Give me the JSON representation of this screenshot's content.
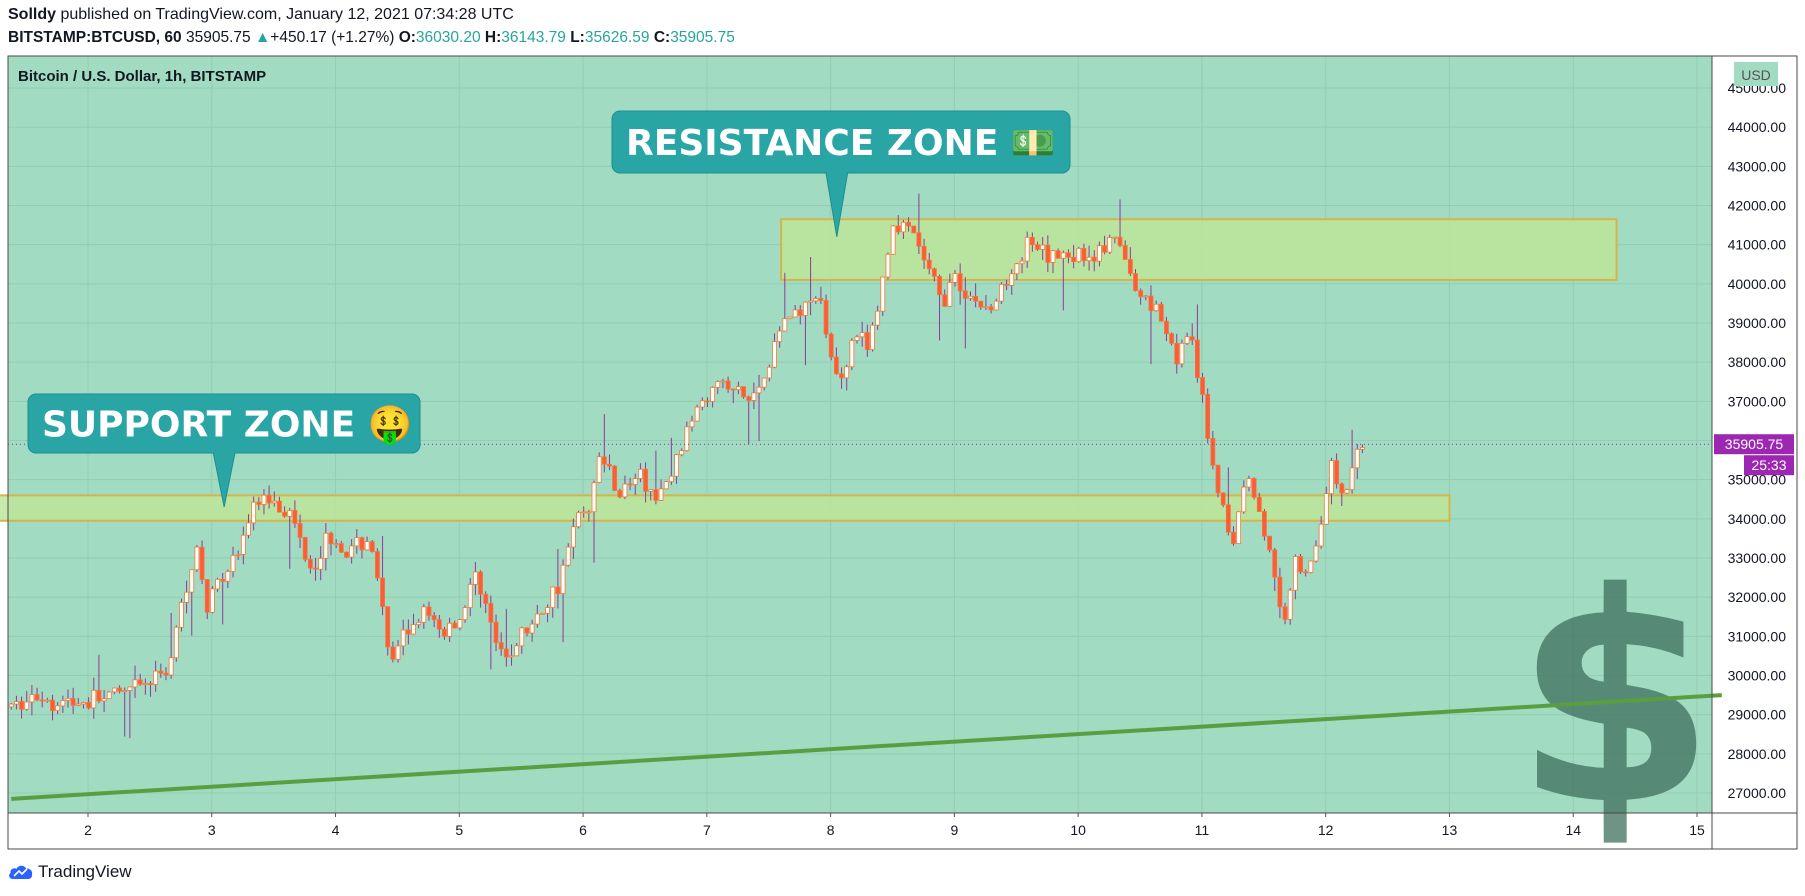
{
  "header": {
    "author": "Solldy",
    "published_text": "published on TradingView.com, January 12, 2021 07:34:28 UTC",
    "symbol": "BITSTAMP:BTCUSD, 60",
    "last": "35905.75",
    "change_arrow": "▲",
    "change": "+450.17 (+1.27%)",
    "o_label": "O:",
    "o_value": "36030.20",
    "h_label": "H:",
    "h_value": "36143.79",
    "l_label": "L:",
    "l_value": "35626.59",
    "c_label": "C:",
    "c_value": "35905.75"
  },
  "chart_data": {
    "type": "candlestick",
    "title": "Bitcoin / U.S. Dollar, 1h, BITSTAMP",
    "currency_label": "USD",
    "x_ticks": [
      "2",
      "3",
      "4",
      "5",
      "6",
      "7",
      "8",
      "9",
      "10",
      "11",
      "12",
      "13",
      "14",
      "15"
    ],
    "y_ticks": [
      27000,
      28000,
      29000,
      30000,
      31000,
      32000,
      33000,
      34000,
      35000,
      36000,
      37000,
      38000,
      39000,
      40000,
      41000,
      42000,
      43000,
      44000,
      45000
    ],
    "y_range": [
      26500,
      45400
    ],
    "x_range_days": [
      1.37,
      15.2
    ],
    "last_price_label": "35905.75",
    "countdown_label": "25:33",
    "price_path": [
      [
        1.38,
        29200
      ],
      [
        1.6,
        29450
      ],
      [
        1.9,
        29300
      ],
      [
        2.2,
        29450
      ],
      [
        2.5,
        29800
      ],
      [
        2.65,
        30200
      ],
      [
        2.8,
        32500
      ],
      [
        2.9,
        33200
      ],
      [
        2.95,
        31500
      ],
      [
        3.05,
        32600
      ],
      [
        3.2,
        33000
      ],
      [
        3.35,
        34400
      ],
      [
        3.5,
        34600
      ],
      [
        3.65,
        34000
      ],
      [
        3.8,
        32800
      ],
      [
        3.95,
        33600
      ],
      [
        4.1,
        33100
      ],
      [
        4.25,
        33500
      ],
      [
        4.3,
        33200
      ],
      [
        4.45,
        30200
      ],
      [
        4.55,
        31000
      ],
      [
        4.7,
        31600
      ],
      [
        4.85,
        31100
      ],
      [
        5.0,
        31400
      ],
      [
        5.15,
        32700
      ],
      [
        5.25,
        31300
      ],
      [
        5.35,
        30300
      ],
      [
        5.5,
        31000
      ],
      [
        5.65,
        31500
      ],
      [
        5.8,
        32400
      ],
      [
        5.95,
        34000
      ],
      [
        6.05,
        34400
      ],
      [
        6.15,
        35700
      ],
      [
        6.3,
        34600
      ],
      [
        6.45,
        35200
      ],
      [
        6.6,
        34400
      ],
      [
        6.75,
        35400
      ],
      [
        6.9,
        36800
      ],
      [
        7.05,
        37500
      ],
      [
        7.2,
        37300
      ],
      [
        7.35,
        37000
      ],
      [
        7.5,
        37900
      ],
      [
        7.65,
        39400
      ],
      [
        7.75,
        39200
      ],
      [
        7.85,
        39800
      ],
      [
        7.95,
        39100
      ],
      [
        8.05,
        37500
      ],
      [
        8.2,
        38800
      ],
      [
        8.3,
        38300
      ],
      [
        8.4,
        39600
      ],
      [
        8.5,
        41500
      ],
      [
        8.65,
        41300
      ],
      [
        8.8,
        40300
      ],
      [
        8.9,
        39500
      ],
      [
        9.0,
        40200
      ],
      [
        9.15,
        39600
      ],
      [
        9.3,
        39300
      ],
      [
        9.45,
        40400
      ],
      [
        9.6,
        41000
      ],
      [
        9.75,
        40600
      ],
      [
        9.9,
        40800
      ],
      [
        10.05,
        40700
      ],
      [
        10.2,
        40900
      ],
      [
        10.35,
        41000
      ],
      [
        10.45,
        39800
      ],
      [
        10.6,
        39600
      ],
      [
        10.7,
        38900
      ],
      [
        10.8,
        38200
      ],
      [
        10.9,
        38700
      ],
      [
        11.0,
        37000
      ],
      [
        11.1,
        35200
      ],
      [
        11.25,
        33200
      ],
      [
        11.35,
        35200
      ],
      [
        11.45,
        34400
      ],
      [
        11.55,
        33000
      ],
      [
        11.65,
        31300
      ],
      [
        11.75,
        32900
      ],
      [
        11.85,
        32600
      ],
      [
        11.95,
        33800
      ],
      [
        12.05,
        35300
      ],
      [
        12.15,
        34400
      ],
      [
        12.2,
        35200
      ],
      [
        12.3,
        35905
      ]
    ],
    "resistance_zone": {
      "days": [
        7.6,
        14.35
      ],
      "price": [
        40100,
        41650
      ]
    },
    "support_zone": {
      "days": [
        1.0,
        13.0
      ],
      "price": [
        33950,
        34600
      ]
    },
    "trendline": {
      "start": [
        1.38,
        26850
      ],
      "end": [
        15.2,
        29500
      ]
    },
    "annotations": [
      {
        "text": "RESISTANCE ZONE 💵",
        "target_day": 8.05,
        "target_price": 41200
      },
      {
        "text": "SUPPORT ZONE 🤑",
        "target_day": 3.1,
        "target_price": 34300
      }
    ],
    "watermark_symbol": "$",
    "colors": {
      "background": "#a1dbc2",
      "candle_up": "#ffffff",
      "candle_down": "#ff5a3c",
      "wick": "#8e3a9a",
      "zone_fill": "#bde59a",
      "zone_stroke": "#d6b548",
      "trendline": "#5b9e42",
      "callout": "#2aa5a5",
      "last_price_bg": "#9c27b0",
      "watermark": "#3f6f5d"
    }
  },
  "footer": {
    "brand": "TradingView"
  }
}
